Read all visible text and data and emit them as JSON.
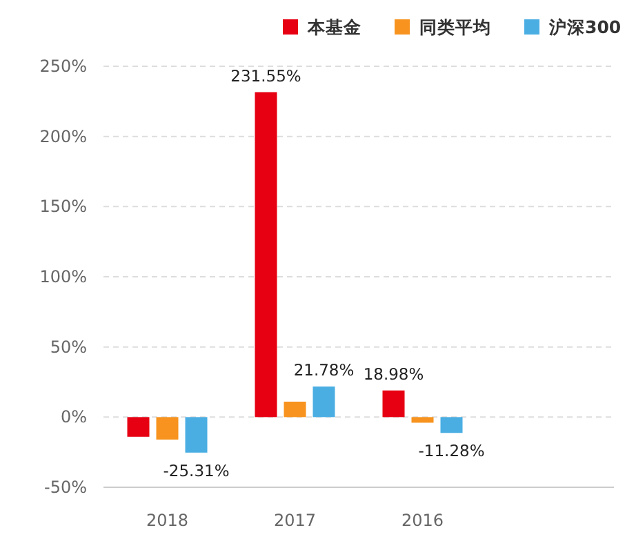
{
  "chart_data": {
    "type": "bar",
    "categories": [
      "2018",
      "2017",
      "2016",
      null
    ],
    "series": [
      {
        "name": "本基金",
        "color": "#e60012",
        "values": [
          -14,
          231.55,
          18.98,
          null
        ],
        "value_labels": [
          null,
          "231.55%",
          "18.98%",
          null
        ]
      },
      {
        "name": "同类平均",
        "color": "#f7931e",
        "values": [
          -16,
          11,
          -4,
          null
        ],
        "value_labels": [
          null,
          null,
          null,
          null
        ]
      },
      {
        "name": "沪深300",
        "color": "#4aaee3",
        "values": [
          -25.31,
          21.78,
          -11.28,
          null
        ],
        "value_labels": [
          "-25.31%",
          "21.78%",
          "-11.28%",
          null
        ]
      }
    ],
    "ylim": [
      -50,
      250
    ],
    "yticks": [
      {
        "value": -50,
        "label": "-50%"
      },
      {
        "value": 0,
        "label": "0%"
      },
      {
        "value": 50,
        "label": "50%"
      },
      {
        "value": 100,
        "label": "100%"
      },
      {
        "value": 150,
        "label": "150%"
      },
      {
        "value": 200,
        "label": "200%"
      },
      {
        "value": 250,
        "label": "250%"
      }
    ],
    "grid": "y",
    "legend": "top right"
  }
}
